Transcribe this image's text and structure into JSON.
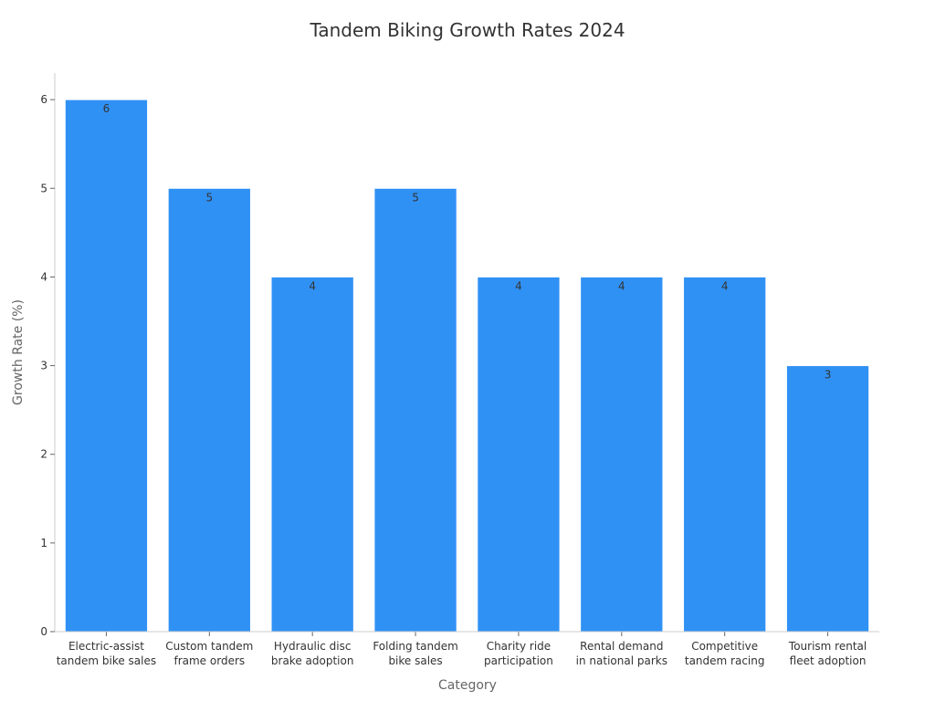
{
  "colors": {
    "bar": "#3091f5",
    "bar_stroke": "#ffffff"
  },
  "chart_data": {
    "type": "bar",
    "title": "Tandem Biking Growth Rates 2024",
    "xlabel": "Category",
    "ylabel": "Growth Rate (%)",
    "ylim": [
      0,
      6.3
    ],
    "yticks": [
      0,
      1,
      2,
      3,
      4,
      5,
      6
    ],
    "grid": false,
    "categories": [
      [
        "Electric-assist",
        "tandem bike sales"
      ],
      [
        "Custom tandem",
        "frame orders"
      ],
      [
        "Hydraulic disc",
        "brake adoption"
      ],
      [
        "Folding tandem",
        "bike sales"
      ],
      [
        "Charity ride",
        "participation"
      ],
      [
        "Rental demand",
        "in national parks"
      ],
      [
        "Competitive",
        "tandem racing"
      ],
      [
        "Tourism rental",
        "fleet adoption"
      ]
    ],
    "values": [
      6,
      5,
      4,
      5,
      4,
      4,
      4,
      3
    ]
  }
}
